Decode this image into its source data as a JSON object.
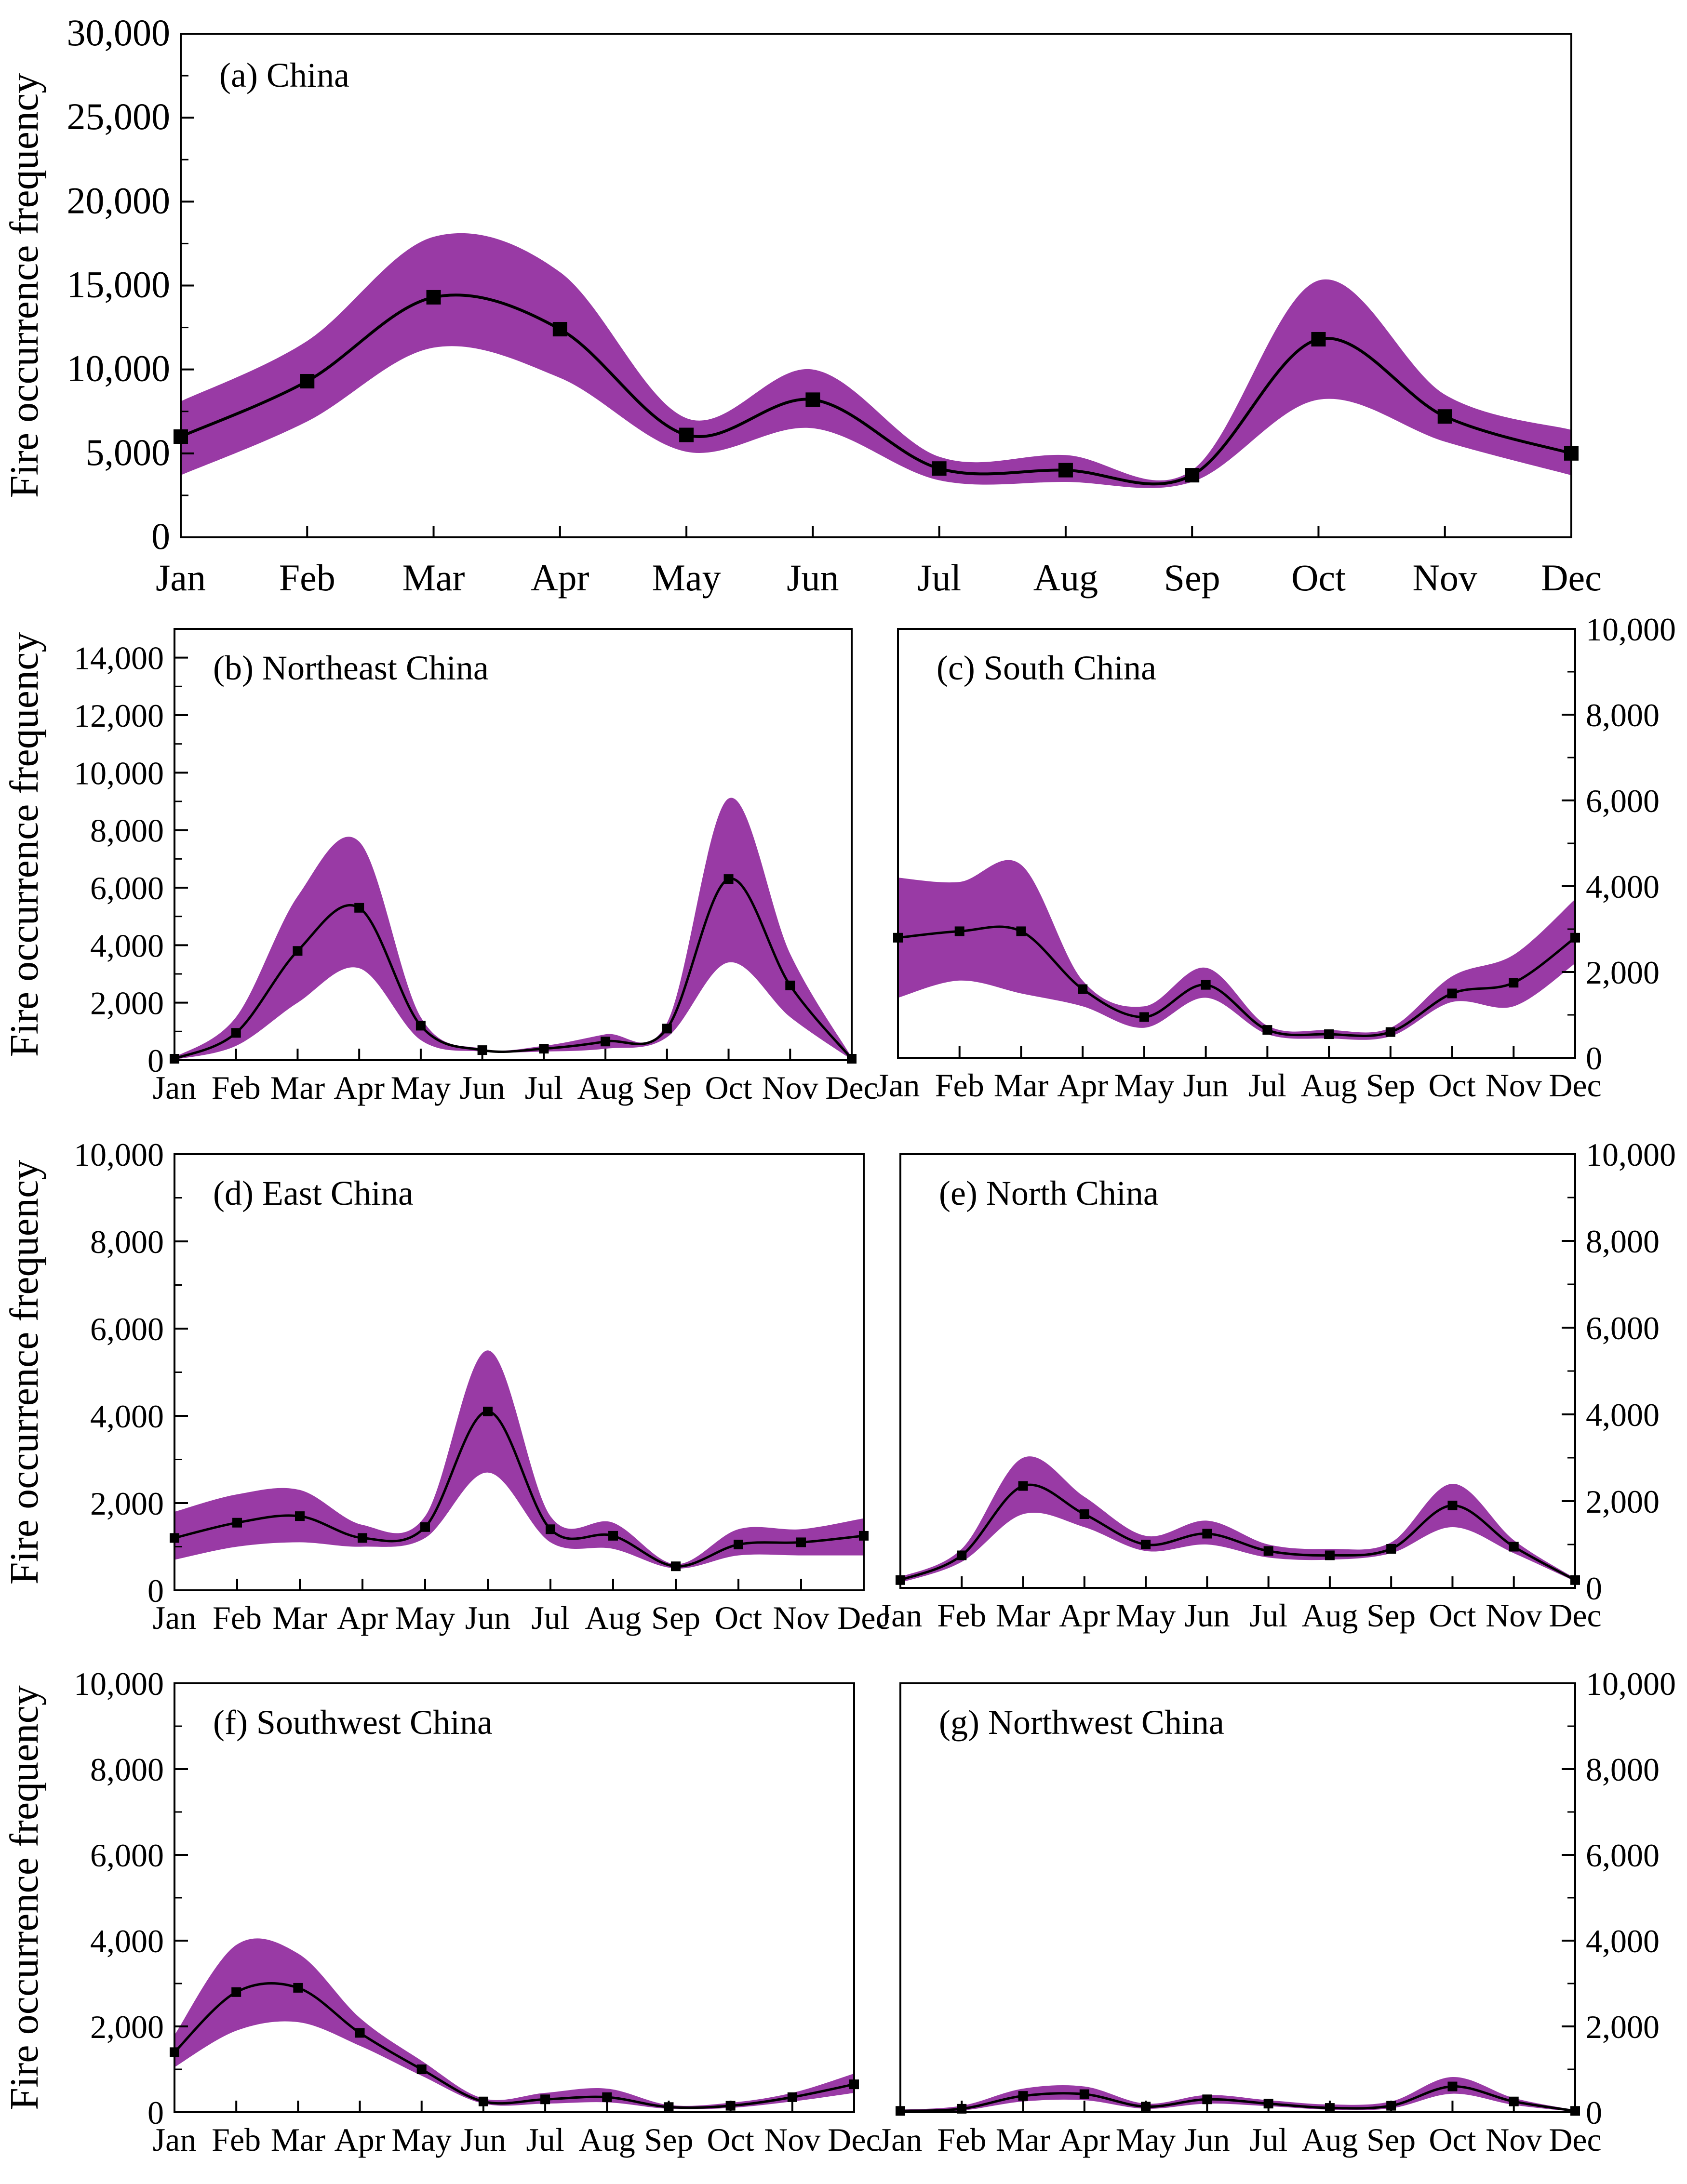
{
  "figure": {
    "ylabel": "Fire occurrence frequency",
    "band_color": "#993aa5",
    "line_color": "#000000"
  },
  "chart_data": [
    {
      "id": "a",
      "type": "line",
      "title": "(a) China",
      "ylabel": "Fire occurrence frequency",
      "categories": [
        "Jan",
        "Feb",
        "Mar",
        "Apr",
        "May",
        "Jun",
        "Jul",
        "Aug",
        "Sep",
        "Oct",
        "Nov",
        "Dec"
      ],
      "series": [
        {
          "name": "mean",
          "values": [
            6000,
            9300,
            14300,
            12400,
            6100,
            8200,
            4100,
            4000,
            3700,
            11800,
            7200,
            5000
          ]
        },
        {
          "name": "upper",
          "values": [
            8100,
            11700,
            17900,
            15800,
            7100,
            10000,
            4800,
            4900,
            4000,
            15300,
            8500,
            6400
          ]
        },
        {
          "name": "lower",
          "values": [
            3700,
            6900,
            11300,
            9500,
            5100,
            6500,
            3400,
            3300,
            3300,
            8200,
            5700,
            3700
          ]
        }
      ],
      "ylim": [
        0,
        30000
      ],
      "yticks": [
        "0",
        "5,000",
        "10,000",
        "15,000",
        "20,000",
        "25,000",
        "30,000"
      ],
      "yaxis_side": "left"
    },
    {
      "id": "b",
      "type": "line",
      "title": "(b) Northeast China",
      "ylabel": "Fire occurrence frequency",
      "categories": [
        "Jan",
        "Feb",
        "Mar",
        "Apr",
        "May",
        "Jun",
        "Jul",
        "Aug",
        "Sep",
        "Oct",
        "Nov",
        "Dec"
      ],
      "series": [
        {
          "name": "mean",
          "values": [
            50,
            950,
            3800,
            5300,
            1200,
            350,
            400,
            650,
            1100,
            6300,
            2600,
            50
          ]
        },
        {
          "name": "upper",
          "values": [
            100,
            1500,
            5700,
            7600,
            1500,
            400,
            500,
            900,
            1300,
            9100,
            3700,
            100
          ]
        },
        {
          "name": "lower",
          "values": [
            20,
            500,
            2000,
            3200,
            700,
            300,
            300,
            400,
            800,
            3400,
            1500,
            20
          ]
        }
      ],
      "ylim": [
        0,
        15000
      ],
      "yticks": [
        "0",
        "2,000",
        "4,000",
        "6,000",
        "8,000",
        "10,000",
        "12,000",
        "14,000"
      ],
      "yaxis_side": "left"
    },
    {
      "id": "c",
      "type": "line",
      "title": "(c) South China",
      "categories": [
        "Jan",
        "Feb",
        "Mar",
        "Apr",
        "May",
        "Jun",
        "Jul",
        "Aug",
        "Sep",
        "Oct",
        "Nov",
        "Dec"
      ],
      "series": [
        {
          "name": "mean",
          "values": [
            2800,
            2950,
            2950,
            1600,
            950,
            1700,
            650,
            550,
            600,
            1500,
            1750,
            2800
          ]
        },
        {
          "name": "upper",
          "values": [
            4200,
            4100,
            4500,
            1800,
            1200,
            2100,
            750,
            650,
            700,
            1900,
            2400,
            3700
          ]
        },
        {
          "name": "lower",
          "values": [
            1400,
            1800,
            1500,
            1200,
            700,
            1400,
            550,
            450,
            500,
            1300,
            1200,
            2200
          ]
        }
      ],
      "ylim": [
        0,
        10000
      ],
      "yticks": [
        "0",
        "2,000",
        "4,000",
        "6,000",
        "8,000",
        "10,000"
      ],
      "yaxis_side": "right"
    },
    {
      "id": "d",
      "type": "line",
      "title": "(d) East China",
      "ylabel": "Fire occurrence frequency",
      "categories": [
        "Jan",
        "Feb",
        "Mar",
        "Apr",
        "May",
        "Jun",
        "Jul",
        "Aug",
        "Sep",
        "Oct",
        "Nov",
        "Dec"
      ],
      "series": [
        {
          "name": "mean",
          "values": [
            1200,
            1550,
            1700,
            1200,
            1450,
            4100,
            1400,
            1250,
            550,
            1050,
            1100,
            1250
          ]
        },
        {
          "name": "upper",
          "values": [
            1800,
            2200,
            2300,
            1500,
            1700,
            5500,
            1700,
            1550,
            600,
            1400,
            1400,
            1650
          ]
        },
        {
          "name": "lower",
          "values": [
            700,
            1000,
            1100,
            1000,
            1200,
            2700,
            1100,
            950,
            500,
            800,
            800,
            800
          ]
        }
      ],
      "ylim": [
        0,
        10000
      ],
      "yticks": [
        "0",
        "2,000",
        "4,000",
        "6,000",
        "8,000",
        "10,000"
      ],
      "yaxis_side": "left"
    },
    {
      "id": "e",
      "type": "line",
      "title": "(e) North China",
      "categories": [
        "Jan",
        "Feb",
        "Mar",
        "Apr",
        "May",
        "Jun",
        "Jul",
        "Aug",
        "Sep",
        "Oct",
        "Nov",
        "Dec"
      ],
      "series": [
        {
          "name": "mean",
          "values": [
            180,
            750,
            2350,
            1700,
            1000,
            1250,
            850,
            750,
            900,
            1900,
            950,
            180
          ]
        },
        {
          "name": "upper",
          "values": [
            250,
            900,
            3000,
            2100,
            1200,
            1550,
            1000,
            900,
            1050,
            2400,
            1100,
            220
          ]
        },
        {
          "name": "lower",
          "values": [
            120,
            600,
            1700,
            1400,
            850,
            1000,
            700,
            650,
            800,
            1400,
            800,
            150
          ]
        }
      ],
      "ylim": [
        0,
        10000
      ],
      "yticks": [
        "0",
        "2,000",
        "4,000",
        "6,000",
        "8,000",
        "10,000"
      ],
      "yaxis_side": "right"
    },
    {
      "id": "f",
      "type": "line",
      "title": "(f) Southwest China",
      "ylabel": "Fire occurrence frequency",
      "categories": [
        "Jan",
        "Feb",
        "Mar",
        "Apr",
        "May",
        "Jun",
        "Jul",
        "Aug",
        "Sep",
        "Oct",
        "Nov",
        "Dec"
      ],
      "series": [
        {
          "name": "mean",
          "values": [
            1400,
            2800,
            2900,
            1850,
            1000,
            250,
            300,
            350,
            120,
            150,
            350,
            650
          ]
        },
        {
          "name": "upper",
          "values": [
            1800,
            3900,
            3700,
            2200,
            1200,
            320,
            450,
            550,
            170,
            220,
            450,
            900
          ]
        },
        {
          "name": "lower",
          "values": [
            1050,
            1900,
            2100,
            1550,
            850,
            200,
            200,
            230,
            80,
            100,
            250,
            450
          ]
        }
      ],
      "ylim": [
        0,
        10000
      ],
      "yticks": [
        "0",
        "2,000",
        "4,000",
        "6,000",
        "8,000",
        "10,000"
      ],
      "yaxis_side": "left"
    },
    {
      "id": "g",
      "type": "line",
      "title": "(g) Northwest China",
      "categories": [
        "Jan",
        "Feb",
        "Mar",
        "Apr",
        "May",
        "Jun",
        "Jul",
        "Aug",
        "Sep",
        "Oct",
        "Nov",
        "Dec"
      ],
      "series": [
        {
          "name": "mean",
          "values": [
            30,
            80,
            380,
            420,
            130,
            300,
            200,
            100,
            150,
            600,
            250,
            30
          ]
        },
        {
          "name": "upper",
          "values": [
            60,
            150,
            550,
            600,
            200,
            400,
            280,
            180,
            250,
            820,
            330,
            50
          ]
        },
        {
          "name": "lower",
          "values": [
            10,
            40,
            250,
            280,
            80,
            200,
            140,
            60,
            90,
            430,
            170,
            10
          ]
        }
      ],
      "ylim": [
        0,
        10000
      ],
      "yticks": [
        "0",
        "2,000",
        "4,000",
        "6,000",
        "8,000",
        "10,000"
      ],
      "yaxis_side": "right"
    }
  ]
}
